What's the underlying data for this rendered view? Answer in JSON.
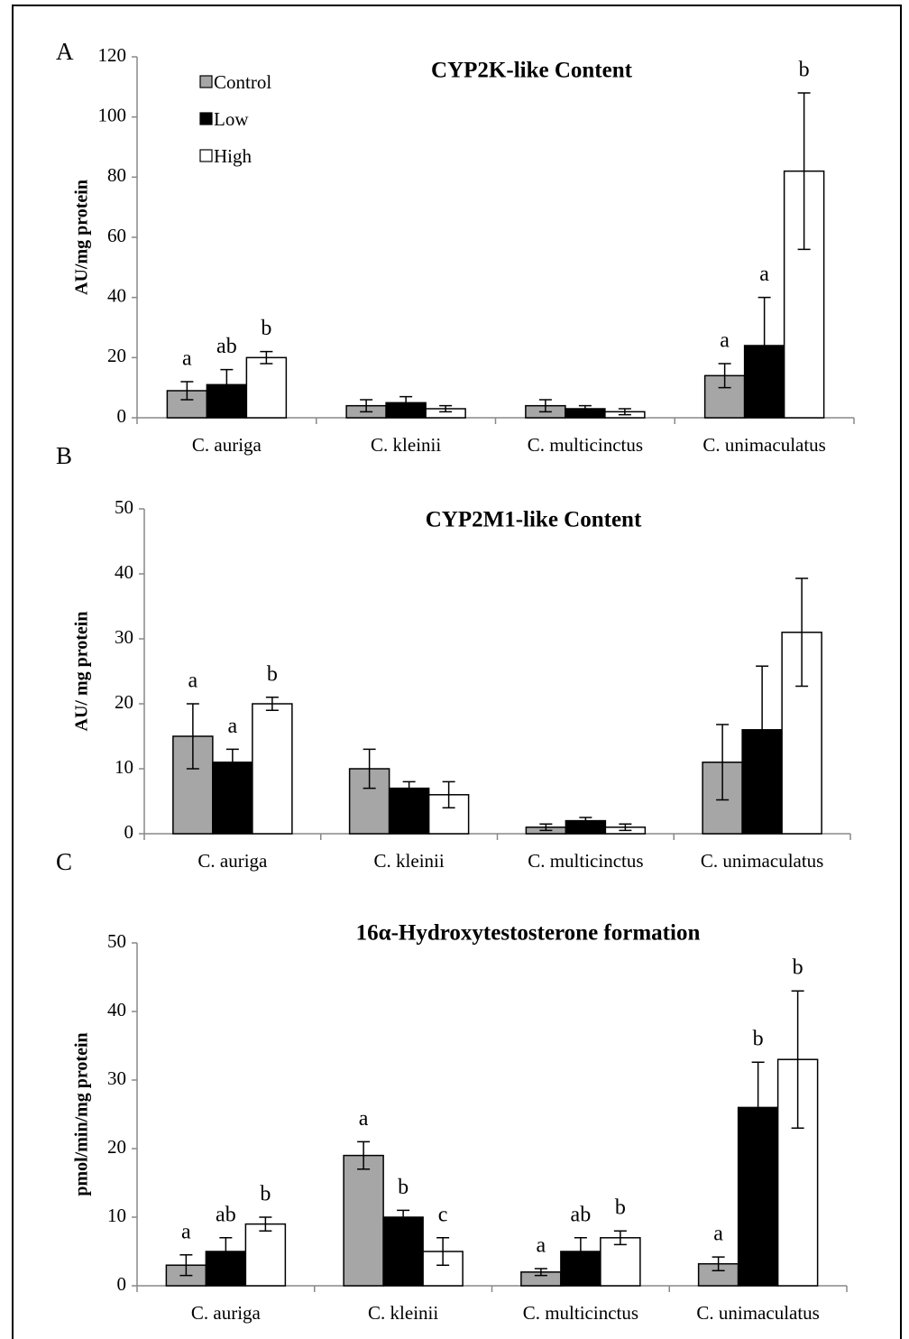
{
  "chart_data": [
    {
      "type": "bar",
      "panel": "A",
      "title": "CYP2K-like Content",
      "y_label": "AU/mg protein",
      "categories": [
        "C. auriga",
        "C. kleinii",
        "C. multicinctus",
        "C. unimaculatus"
      ],
      "ylim": [
        0,
        120
      ],
      "yticks": [
        0,
        20,
        40,
        60,
        80,
        100,
        120
      ],
      "legend": "upper left",
      "series": [
        {
          "name": "Control",
          "color": "#a6a6a6",
          "values": [
            9,
            4,
            4,
            14
          ],
          "errors": [
            3,
            2,
            2,
            4
          ],
          "letters": [
            "a",
            null,
            null,
            "a"
          ]
        },
        {
          "name": "Low",
          "color": "#000000",
          "values": [
            11,
            5,
            3,
            24
          ],
          "errors": [
            5,
            2,
            1,
            16
          ],
          "letters": [
            "ab",
            null,
            null,
            "a"
          ]
        },
        {
          "name": "High",
          "color": "#ffffff",
          "values": [
            20,
            3,
            2,
            82
          ],
          "errors": [
            2,
            1,
            1,
            26
          ],
          "letters": [
            "b",
            null,
            null,
            "b"
          ]
        }
      ]
    },
    {
      "type": "bar",
      "panel": "B",
      "title": "CYP2M1-like Content",
      "y_label": "AU/ mg protein",
      "categories": [
        "C. auriga",
        "C. kleinii",
        "C. multicinctus",
        "C. unimaculatus"
      ],
      "ylim": [
        0,
        50
      ],
      "yticks": [
        0,
        10,
        20,
        30,
        40,
        50
      ],
      "series": [
        {
          "color": "#a6a6a6",
          "values": [
            15,
            10,
            1,
            11
          ],
          "errors": [
            5,
            3,
            0.5,
            5.8
          ],
          "letters": [
            "a",
            null,
            null,
            null
          ]
        },
        {
          "color": "#000000",
          "values": [
            11,
            7,
            2,
            16
          ],
          "errors": [
            2,
            1,
            0.5,
            9.8
          ],
          "letters": [
            "a",
            null,
            null,
            null
          ]
        },
        {
          "color": "#ffffff",
          "values": [
            20,
            6,
            1,
            31
          ],
          "errors": [
            1,
            2,
            0.5,
            8.3
          ],
          "letters": [
            "b",
            null,
            null,
            null
          ]
        }
      ]
    },
    {
      "type": "bar",
      "panel": "C",
      "title": "16α-Hydroxytestosterone formation",
      "y_label": "pmol/min/mg protein",
      "categories": [
        "C. auriga",
        "C. kleinii",
        "C. multicinctus",
        "C. unimaculatus"
      ],
      "ylim": [
        0,
        50
      ],
      "yticks": [
        0,
        10,
        20,
        30,
        40,
        50
      ],
      "series": [
        {
          "color": "#a6a6a6",
          "values": [
            3,
            19,
            2,
            3.2
          ],
          "errors": [
            1.5,
            2,
            0.5,
            1
          ],
          "letters": [
            "a",
            "a",
            "a",
            "a"
          ]
        },
        {
          "color": "#000000",
          "values": [
            5,
            10,
            5,
            26
          ],
          "errors": [
            2,
            1,
            2,
            6.6
          ],
          "letters": [
            "ab",
            "b",
            "ab",
            "b"
          ]
        },
        {
          "color": "#ffffff",
          "values": [
            9,
            5,
            7,
            33
          ],
          "errors": [
            1,
            2,
            1,
            10
          ],
          "letters": [
            "b",
            "c",
            "b",
            "b"
          ]
        }
      ]
    }
  ]
}
